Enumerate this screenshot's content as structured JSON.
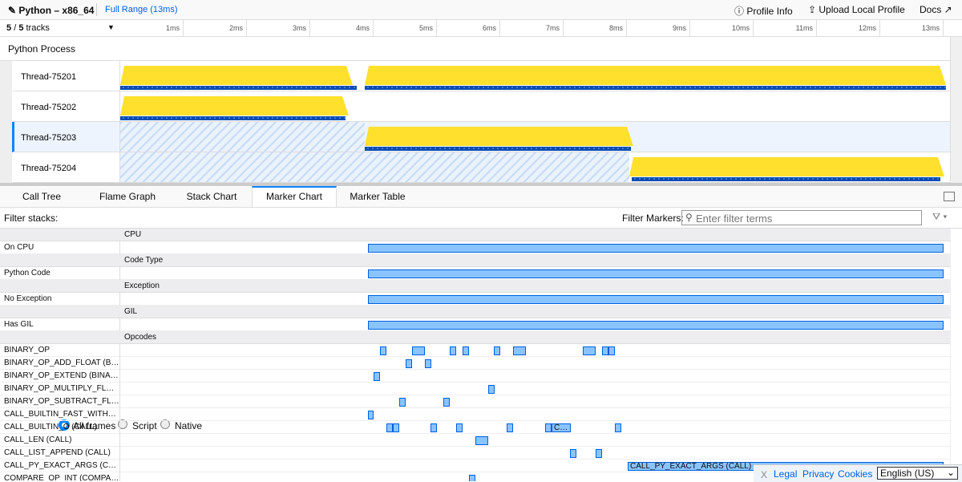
{
  "header": {
    "title": "Python – x86_64",
    "range": "Full Range (13ms)",
    "profile_info": "Profile Info",
    "upload": "Upload Local Profile",
    "docs": "Docs"
  },
  "tracks": {
    "visible": "5",
    "separator": "/",
    "total": "5",
    "label": "tracks"
  },
  "timeline_ticks": [
    "1ms",
    "2ms",
    "3ms",
    "4ms",
    "5ms",
    "6ms",
    "7ms",
    "8ms",
    "9ms",
    "10ms",
    "11ms",
    "12ms",
    "13ms"
  ],
  "process": "Python Process",
  "threads": [
    "Thread-75201",
    "Thread-75202",
    "Thread-75203",
    "Thread-75204"
  ],
  "tabs": [
    "Call Tree",
    "Flame Graph",
    "Stack Chart",
    "Marker Chart",
    "Marker Table"
  ],
  "filter_stacks": {
    "label": "Filter stacks:",
    "options": [
      "All frames",
      "Script",
      "Native"
    ]
  },
  "filter_markers": {
    "label": "Filter Markers:",
    "placeholder": "Enter filter terms"
  },
  "marker_rows": [
    {
      "group": "CPU"
    },
    {
      "label": "On CPU"
    },
    {
      "group": "Code Type"
    },
    {
      "label": "Python Code"
    },
    {
      "group": "Exception"
    },
    {
      "label": "No Exception"
    },
    {
      "group": "GIL"
    },
    {
      "label": "Has GIL"
    },
    {
      "group": "Opcodes"
    },
    {
      "label": "BINARY_OP"
    },
    {
      "label": "BINARY_OP_ADD_FLOAT (B…"
    },
    {
      "label": "BINARY_OP_EXTEND (BINA…"
    },
    {
      "label": "BINARY_OP_MULTIPLY_FL…"
    },
    {
      "label": "BINARY_OP_SUBTRACT_FL…"
    },
    {
      "label": "CALL_BUILTIN_FAST_WITH…"
    },
    {
      "label": "CALL_BUILTIN_O (CALL)",
      "marker_labels": [
        "C…"
      ]
    },
    {
      "label": "CALL_LEN (CALL)"
    },
    {
      "label": "CALL_LIST_APPEND (CALL)"
    },
    {
      "label": "CALL_PY_EXACT_ARGS (C…",
      "marker_labels": [
        "CALL_PY_EXACT_ARGS (CALL)"
      ]
    },
    {
      "label": "COMPARE_OP_INT (COMPA…"
    }
  ],
  "footer": {
    "close": "X",
    "links": [
      "Legal",
      "Privacy",
      "Cookies"
    ],
    "language": "English (US)"
  }
}
